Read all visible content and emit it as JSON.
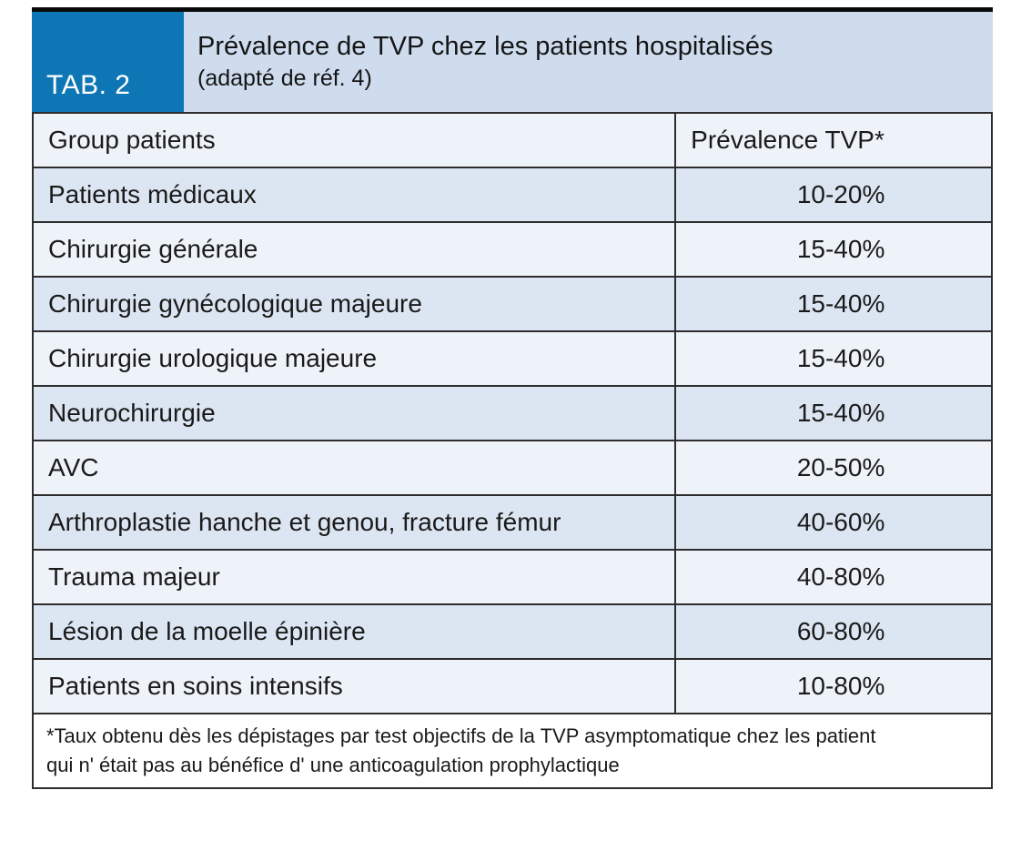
{
  "figure": {
    "tag": "TAB. 2",
    "title": "Prévalence de TVP chez les patients hospitalisés",
    "subtitle": "(adapté de réf. 4)",
    "columns": {
      "group": "Group patients",
      "prevalence": "Prévalence TVP*"
    },
    "rows": [
      {
        "group": "Patients médicaux",
        "prevalence": "10-20%"
      },
      {
        "group": "Chirurgie générale",
        "prevalence": "15-40%"
      },
      {
        "group": "Chirurgie gynécologique majeure",
        "prevalence": "15-40%"
      },
      {
        "group": "Chirurgie urologique majeure",
        "prevalence": "15-40%"
      },
      {
        "group": "Neurochirurgie",
        "prevalence": "15-40%"
      },
      {
        "group": "AVC",
        "prevalence": "20-50%"
      },
      {
        "group": "Arthroplastie hanche et genou, fracture fémur",
        "prevalence": "40-60%"
      },
      {
        "group": "Trauma majeur",
        "prevalence": "40-80%"
      },
      {
        "group": "Lésion de la moelle épinière",
        "prevalence": "60-80%"
      },
      {
        "group": "Patients en soins intensifs",
        "prevalence": "10-80%"
      }
    ],
    "footnote": {
      "line1": "*Taux obtenu dès les dépistages par test objectifs de la TVP asymptomatique chez les patient",
      "line2": "qui n' était pas au bénéfice d' une anticoagulation prophylactique"
    },
    "colors": {
      "tab_box_blue": "#0e76b5",
      "title_band": "#cedcee",
      "row_blue": "#dce6f2",
      "row_light": "#eef2f9",
      "border": "#2d2d2d",
      "top_bar": "#0a0a0a"
    }
  },
  "chart_data": {
    "type": "table",
    "title": "Prévalence de TVP chez les patients hospitalisés (adapté de réf. 4)",
    "columns": [
      "Group patients",
      "Prévalence TVP*"
    ],
    "rows": [
      [
        "Patients médicaux",
        "10-20%"
      ],
      [
        "Chirurgie générale",
        "15-40%"
      ],
      [
        "Chirurgie gynécologique majeure",
        "15-40%"
      ],
      [
        "Chirurgie urologique majeure",
        "15-40%"
      ],
      [
        "Neurochirurgie",
        "15-40%"
      ],
      [
        "AVC",
        "20-50%"
      ],
      [
        "Arthroplastie hanche et genou, fracture fémur",
        "40-60%"
      ],
      [
        "Trauma majeur",
        "40-80%"
      ],
      [
        "Lésion de la moelle épinière",
        "60-80%"
      ],
      [
        "Patients en soins intensifs",
        "10-80%"
      ]
    ]
  }
}
